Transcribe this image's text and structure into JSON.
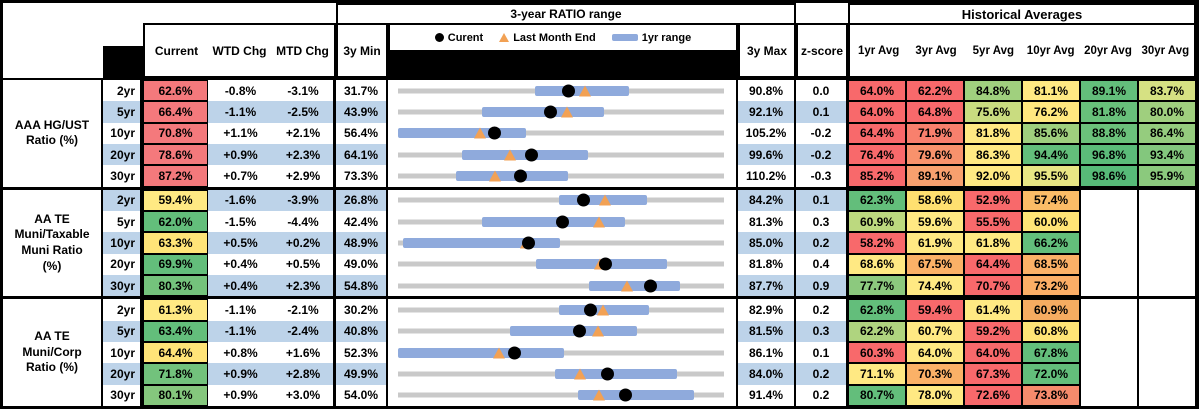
{
  "header": {
    "range_section_title": "3-year RATIO range",
    "historical_title": "Historical Averages",
    "col_current": "Current",
    "col_wtd_chg": "WTD Chg",
    "col_mtd_chg": "MTD Chg",
    "col_3y_min": "3y Min",
    "col_3y_max": "3y Max",
    "col_zscore": "z-score",
    "avg_cols": [
      "1yr Avg",
      "3yr Avg",
      "5yr Avg",
      "10yr Avg",
      "20yr Avg",
      "30yr Avg"
    ],
    "legend": [
      {
        "marker": "dot-icon",
        "label": "Curent"
      },
      {
        "marker": "triangle-icon",
        "label": "Last Month End"
      },
      {
        "marker": "bar-icon",
        "label": "1yr range"
      }
    ]
  },
  "colors": {
    "stripe_blue": "#BDD3E9",
    "white": "#FFFFFF",
    "bar_blue": "#8FAADC",
    "track_gray": "#C9C9C9",
    "triangle_orange": "#F2A154",
    "dot_black": "#000000",
    "heat_red": "#F8696B",
    "heat_yellow": "#FFE983",
    "heat_green": "#63BE7B"
  },
  "chart_data": {
    "type": "table",
    "description": "Municipal bond ratio table with 3-year range bullet charts; dot = current, triangle = last month end, blue bar = 1yr range, gray track = 3y min to 3y max",
    "groups": [
      {
        "label": "AAA HG/UST\nRatio (%)",
        "stripe_start": "white",
        "rows": [
          {
            "tenor": "2yr",
            "current": "62.6%",
            "current_color": "#F4797C",
            "wtd": "-0.8%",
            "mtd": "-3.1%",
            "min": "31.7%",
            "max": "90.8%",
            "z": "0.0",
            "chart": {
              "min": 31.7,
              "max": 90.8,
              "bar": [
                56.5,
                73.5
              ],
              "current": 62.6,
              "last_month": 65.7
            },
            "avgs": [
              {
                "v": "64.0%",
                "c": "#F8696B"
              },
              {
                "v": "62.2%",
                "c": "#F8696B"
              },
              {
                "v": "84.8%",
                "c": "#A0D07E"
              },
              {
                "v": "81.1%",
                "c": "#FFE983"
              },
              {
                "v": "89.1%",
                "c": "#63BE7B"
              },
              {
                "v": "83.7%",
                "c": "#D6E183"
              }
            ]
          },
          {
            "tenor": "5yr",
            "current": "66.4%",
            "current_color": "#F4797C",
            "wtd": "-1.1%",
            "mtd": "-2.5%",
            "min": "43.9%",
            "max": "92.1%",
            "z": "0.1",
            "chart": {
              "min": 43.9,
              "max": 92.1,
              "bar": [
                56.3,
                74.3
              ],
              "current": 66.4,
              "last_month": 68.9
            },
            "avgs": [
              {
                "v": "64.0%",
                "c": "#F8696B"
              },
              {
                "v": "64.8%",
                "c": "#F8696B"
              },
              {
                "v": "75.6%",
                "c": "#C9DC80"
              },
              {
                "v": "76.2%",
                "c": "#FFE77F"
              },
              {
                "v": "81.8%",
                "c": "#68C07A"
              },
              {
                "v": "80.0%",
                "c": "#9FCF7E"
              }
            ]
          },
          {
            "tenor": "10yr",
            "current": "70.8%",
            "current_color": "#F4797C",
            "wtd": "+1.1%",
            "mtd": "+2.1%",
            "min": "56.4%",
            "max": "105.2%",
            "z": "-0.2",
            "chart": {
              "min": 56.4,
              "max": 105.2,
              "bar": [
                56.4,
                75.6
              ],
              "current": 70.8,
              "last_month": 68.7
            },
            "avgs": [
              {
                "v": "64.4%",
                "c": "#F8696B"
              },
              {
                "v": "71.9%",
                "c": "#F8806D"
              },
              {
                "v": "81.8%",
                "c": "#FFE983"
              },
              {
                "v": "85.6%",
                "c": "#9FCF7E"
              },
              {
                "v": "88.8%",
                "c": "#6BC17B"
              },
              {
                "v": "86.4%",
                "c": "#95CC7E"
              }
            ]
          },
          {
            "tenor": "20yr",
            "current": "78.6%",
            "current_color": "#F4797C",
            "wtd": "+0.9%",
            "mtd": "+2.3%",
            "min": "64.1%",
            "max": "99.6%",
            "z": "-0.2",
            "chart": {
              "min": 64.1,
              "max": 99.6,
              "bar": [
                71.1,
                84.8
              ],
              "current": 78.6,
              "last_month": 76.3
            },
            "avgs": [
              {
                "v": "76.4%",
                "c": "#F8696B"
              },
              {
                "v": "79.6%",
                "c": "#F8926C"
              },
              {
                "v": "86.3%",
                "c": "#FFE983"
              },
              {
                "v": "94.4%",
                "c": "#63BE7B"
              },
              {
                "v": "96.8%",
                "c": "#5BBB79"
              },
              {
                "v": "93.4%",
                "c": "#83C77D"
              }
            ]
          },
          {
            "tenor": "30yr",
            "current": "87.2%",
            "current_color": "#F4797C",
            "wtd": "+0.7%",
            "mtd": "+2.9%",
            "min": "73.3%",
            "max": "110.2%",
            "z": "-0.3",
            "chart": {
              "min": 73.3,
              "max": 110.2,
              "bar": [
                79.9,
                92.5
              ],
              "current": 87.2,
              "last_month": 84.3
            },
            "avgs": [
              {
                "v": "85.2%",
                "c": "#F8696B"
              },
              {
                "v": "89.1%",
                "c": "#F8A06E"
              },
              {
                "v": "92.0%",
                "c": "#FFE983"
              },
              {
                "v": "95.5%",
                "c": "#E8E684"
              },
              {
                "v": "98.6%",
                "c": "#57BA78"
              },
              {
                "v": "95.9%",
                "c": "#8BC97D"
              }
            ]
          }
        ]
      },
      {
        "label": "AA TE\nMuni/Taxable\nMuni Ratio\n(%)",
        "stripe_start": "blue",
        "rows": [
          {
            "tenor": "2yr",
            "current": "59.4%",
            "current_color": "#FFE983",
            "wtd": "-1.6%",
            "mtd": "-3.9%",
            "min": "26.8%",
            "max": "84.2%",
            "z": "0.1",
            "chart": {
              "min": 26.8,
              "max": 84.2,
              "bar": [
                55.2,
                70.6
              ],
              "current": 59.4,
              "last_month": 63.3
            },
            "avgs": [
              {
                "v": "62.3%",
                "c": "#63BE7B"
              },
              {
                "v": "58.6%",
                "c": "#FFE070"
              },
              {
                "v": "52.9%",
                "c": "#F8696B"
              },
              {
                "v": "57.4%",
                "c": "#FBBC67"
              },
              {
                "v": "",
                "c": ""
              },
              {
                "v": "",
                "c": ""
              }
            ]
          },
          {
            "tenor": "5yr",
            "current": "62.0%",
            "current_color": "#63BE7B",
            "wtd": "-1.5%",
            "mtd": "-4.4%",
            "min": "42.4%",
            "max": "81.3%",
            "z": "0.3",
            "chart": {
              "min": 42.4,
              "max": 81.3,
              "bar": [
                52.4,
                69.5
              ],
              "current": 62.0,
              "last_month": 66.4
            },
            "avgs": [
              {
                "v": "60.9%",
                "c": "#BCD97F"
              },
              {
                "v": "59.6%",
                "c": "#FFE983"
              },
              {
                "v": "55.5%",
                "c": "#F8696B"
              },
              {
                "v": "60.0%",
                "c": "#FFE476"
              },
              {
                "v": "",
                "c": ""
              },
              {
                "v": "",
                "c": ""
              }
            ]
          },
          {
            "tenor": "10yr",
            "current": "63.3%",
            "current_color": "#FFE478",
            "wtd": "+0.5%",
            "mtd": "+0.2%",
            "min": "48.9%",
            "max": "85.0%",
            "z": "0.2",
            "chart": {
              "min": 48.9,
              "max": 85.0,
              "bar": [
                49.4,
                66.8
              ],
              "current": 63.3,
              "last_month": 63.1
            },
            "avgs": [
              {
                "v": "58.2%",
                "c": "#F8696B"
              },
              {
                "v": "61.9%",
                "c": "#FFE983"
              },
              {
                "v": "61.8%",
                "c": "#FFE983"
              },
              {
                "v": "66.2%",
                "c": "#63BE7B"
              },
              {
                "v": "",
                "c": ""
              },
              {
                "v": "",
                "c": ""
              }
            ]
          },
          {
            "tenor": "20yr",
            "current": "69.9%",
            "current_color": "#63BE7B",
            "wtd": "+0.4%",
            "mtd": "+0.5%",
            "min": "49.0%",
            "max": "81.8%",
            "z": "0.4",
            "chart": {
              "min": 49.0,
              "max": 81.8,
              "bar": [
                62.9,
                76.1
              ],
              "current": 69.9,
              "last_month": 69.4
            },
            "avgs": [
              {
                "v": "68.6%",
                "c": "#FFE983"
              },
              {
                "v": "67.5%",
                "c": "#FBB167"
              },
              {
                "v": "64.4%",
                "c": "#F8696B"
              },
              {
                "v": "68.5%",
                "c": "#FBB167"
              },
              {
                "v": "",
                "c": ""
              },
              {
                "v": "",
                "c": ""
              }
            ]
          },
          {
            "tenor": "30yr",
            "current": "80.3%",
            "current_color": "#74C37C",
            "wtd": "+0.4%",
            "mtd": "+2.3%",
            "min": "54.8%",
            "max": "87.7%",
            "z": "0.9",
            "chart": {
              "min": 54.8,
              "max": 87.7,
              "bar": [
                74.1,
                83.3
              ],
              "current": 80.3,
              "last_month": 78.0
            },
            "avgs": [
              {
                "v": "77.7%",
                "c": "#8CC97E"
              },
              {
                "v": "74.4%",
                "c": "#FFE983"
              },
              {
                "v": "70.7%",
                "c": "#F8696B"
              },
              {
                "v": "73.2%",
                "c": "#FBAE66"
              },
              {
                "v": "",
                "c": ""
              },
              {
                "v": "",
                "c": ""
              }
            ]
          }
        ]
      },
      {
        "label": "AA TE\nMuni/Corp\nRatio (%)",
        "stripe_start": "white",
        "rows": [
          {
            "tenor": "2yr",
            "current": "61.3%",
            "current_color": "#FFE983",
            "wtd": "-1.1%",
            "mtd": "-2.1%",
            "min": "30.2%",
            "max": "82.9%",
            "z": "0.2",
            "chart": {
              "min": 30.2,
              "max": 82.9,
              "bar": [
                56.3,
                70.7
              ],
              "current": 61.3,
              "last_month": 63.4
            },
            "avgs": [
              {
                "v": "62.8%",
                "c": "#63BE7B"
              },
              {
                "v": "59.4%",
                "c": "#F8696B"
              },
              {
                "v": "61.4%",
                "c": "#FFE983"
              },
              {
                "v": "60.9%",
                "c": "#F5AC61"
              },
              {
                "v": "",
                "c": ""
              },
              {
                "v": "",
                "c": ""
              }
            ]
          },
          {
            "tenor": "5yr",
            "current": "63.4%",
            "current_color": "#63BE7B",
            "wtd": "-1.1%",
            "mtd": "-2.4%",
            "min": "40.8%",
            "max": "81.5%",
            "z": "0.3",
            "chart": {
              "min": 40.8,
              "max": 81.5,
              "bar": [
                54.8,
                70.6
              ],
              "current": 63.4,
              "last_month": 65.8
            },
            "avgs": [
              {
                "v": "62.2%",
                "c": "#AFD47F"
              },
              {
                "v": "60.7%",
                "c": "#FFE983"
              },
              {
                "v": "59.2%",
                "c": "#F8696B"
              },
              {
                "v": "60.8%",
                "c": "#FFE476"
              },
              {
                "v": "",
                "c": ""
              },
              {
                "v": "",
                "c": ""
              }
            ]
          },
          {
            "tenor": "10yr",
            "current": "64.4%",
            "current_color": "#FFE478",
            "wtd": "+0.8%",
            "mtd": "+1.6%",
            "min": "52.3%",
            "max": "86.1%",
            "z": "0.1",
            "chart": {
              "min": 52.3,
              "max": 86.1,
              "bar": [
                52.3,
                69.5
              ],
              "current": 64.4,
              "last_month": 62.8
            },
            "avgs": [
              {
                "v": "60.3%",
                "c": "#F8696B"
              },
              {
                "v": "64.0%",
                "c": "#FFE983"
              },
              {
                "v": "64.0%",
                "c": "#F8696B"
              },
              {
                "v": "67.8%",
                "c": "#63BE7B"
              },
              {
                "v": "",
                "c": ""
              },
              {
                "v": "",
                "c": ""
              }
            ]
          },
          {
            "tenor": "20yr",
            "current": "71.8%",
            "current_color": "#72C27C",
            "wtd": "+0.9%",
            "mtd": "+2.8%",
            "min": "49.9%",
            "max": "84.0%",
            "z": "0.2",
            "chart": {
              "min": 49.9,
              "max": 84.0,
              "bar": [
                66.3,
                79.1
              ],
              "current": 71.8,
              "last_month": 69.0
            },
            "avgs": [
              {
                "v": "71.1%",
                "c": "#FFE983"
              },
              {
                "v": "70.3%",
                "c": "#FBB167"
              },
              {
                "v": "67.3%",
                "c": "#F8696B"
              },
              {
                "v": "72.0%",
                "c": "#63BE7B"
              },
              {
                "v": "",
                "c": ""
              },
              {
                "v": "",
                "c": ""
              }
            ]
          },
          {
            "tenor": "30yr",
            "current": "80.1%",
            "current_color": "#85C77D",
            "wtd": "+0.9%",
            "mtd": "+3.0%",
            "min": "54.0%",
            "max": "91.4%",
            "z": "0.2",
            "chart": {
              "min": 54.0,
              "max": 91.4,
              "bar": [
                74.6,
                88.0
              ],
              "current": 80.1,
              "last_month": 77.1
            },
            "avgs": [
              {
                "v": "80.7%",
                "c": "#63BE7B"
              },
              {
                "v": "78.0%",
                "c": "#FFE983"
              },
              {
                "v": "72.6%",
                "c": "#F8696B"
              },
              {
                "v": "73.8%",
                "c": "#F58B6C"
              },
              {
                "v": "",
                "c": ""
              },
              {
                "v": "",
                "c": ""
              }
            ]
          }
        ]
      }
    ]
  }
}
